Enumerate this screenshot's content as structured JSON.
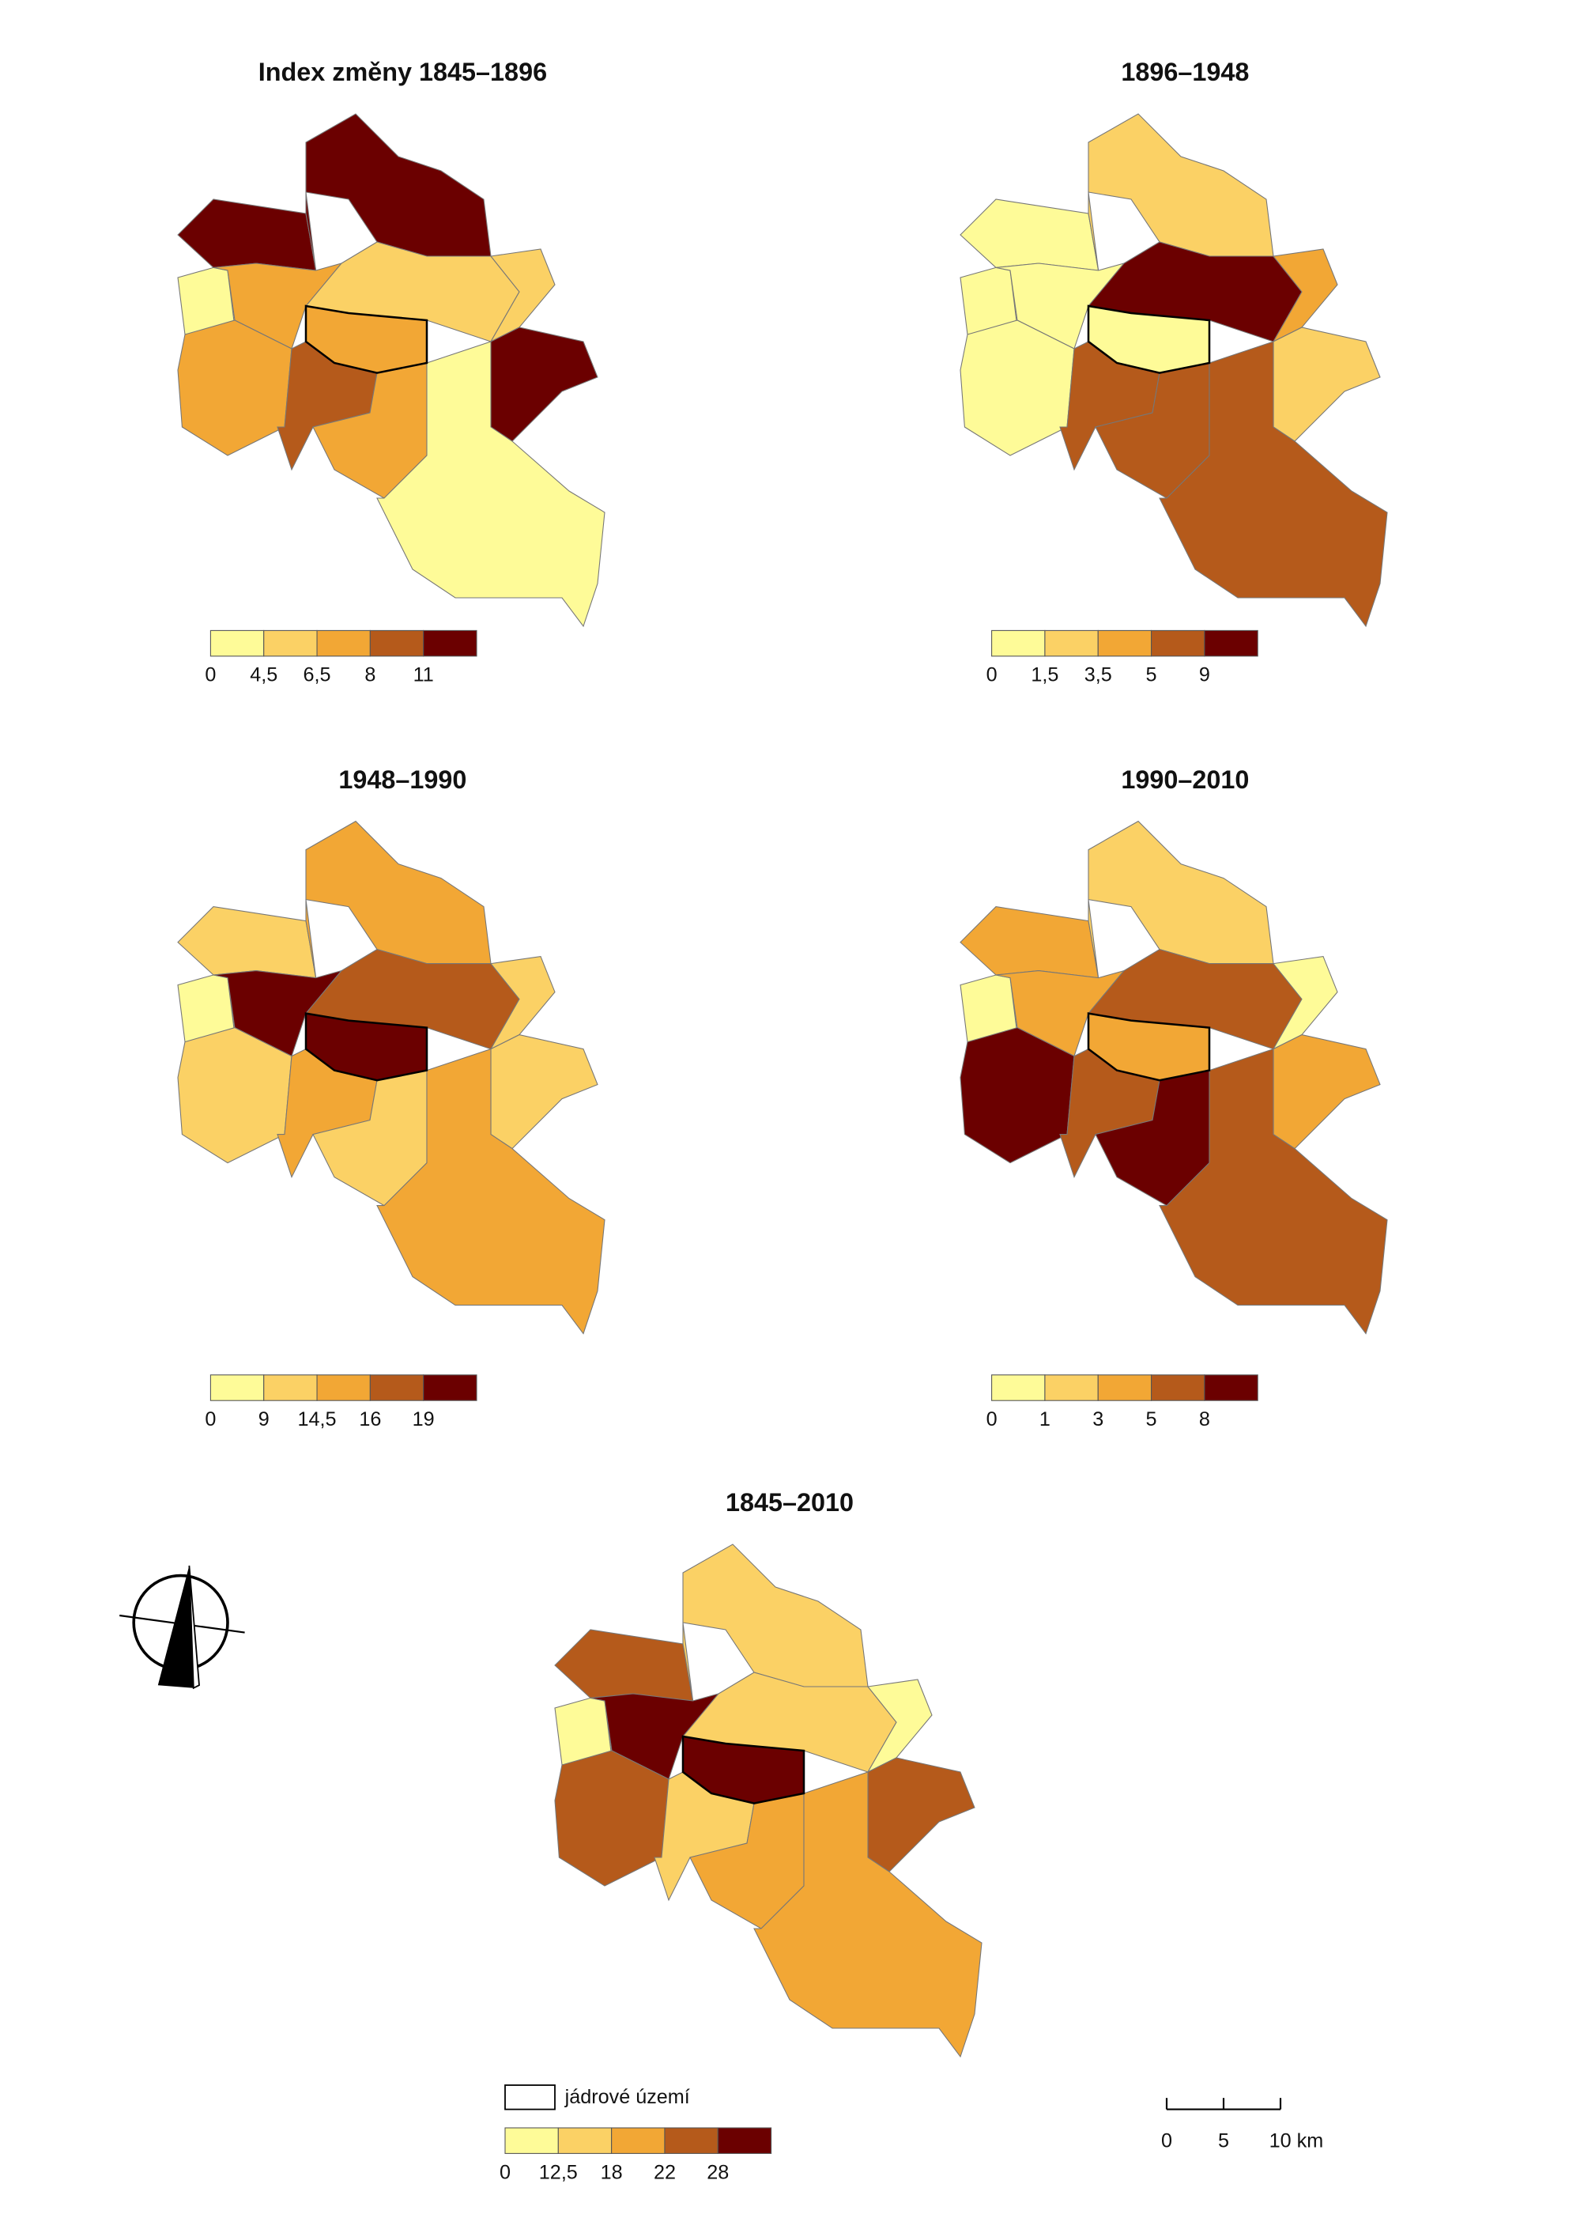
{
  "maps": [
    {
      "title": "Index změny 1845–1896",
      "legend": {
        "colors": [
          "#fefb98",
          "#fbd165",
          "#f2a735",
          "#b55a1b",
          "#6b0000"
        ],
        "ticks": [
          0,
          {
            "value": 4.5,
            "label": "4,5"
          },
          {
            "value": 6.5,
            "label": "6,5"
          },
          8,
          11
        ]
      }
    },
    {
      "title": "1896–1948",
      "legend": {
        "colors": [
          "#fefb98",
          "#fbd165",
          "#f2a735",
          "#b55a1b",
          "#6b0000"
        ],
        "ticks": [
          0,
          {
            "value": 1.5,
            "label": "1,5"
          },
          {
            "value": 3.5,
            "label": "3,5"
          },
          5,
          9
        ]
      }
    },
    {
      "title": "1948–1990",
      "legend": {
        "colors": [
          "#fefb98",
          "#fbd165",
          "#f2a735",
          "#b55a1b",
          "#6b0000"
        ],
        "ticks": [
          0,
          9,
          {
            "value": 14.5,
            "label": "14,5"
          },
          16,
          19
        ]
      }
    },
    {
      "title": "1990–2010",
      "legend": {
        "colors": [
          "#fefb98",
          "#fbd165",
          "#f2a735",
          "#b55a1b",
          "#6b0000"
        ],
        "ticks": [
          0,
          1,
          3,
          5,
          8
        ]
      }
    },
    {
      "title": "1845–2010",
      "legend": {
        "colors": [
          "#fefb98",
          "#fbd165",
          "#f2a735",
          "#b55a1b",
          "#6b0000"
        ],
        "ticks": [
          0,
          {
            "value": 12.5,
            "label": "12,5"
          },
          18,
          22,
          28
        ]
      }
    }
  ],
  "core_legend": "jádrové území",
  "scale": {
    "ticks": [
      0,
      5,
      {
        "value": 10,
        "label": "10 km"
      }
    ]
  }
}
